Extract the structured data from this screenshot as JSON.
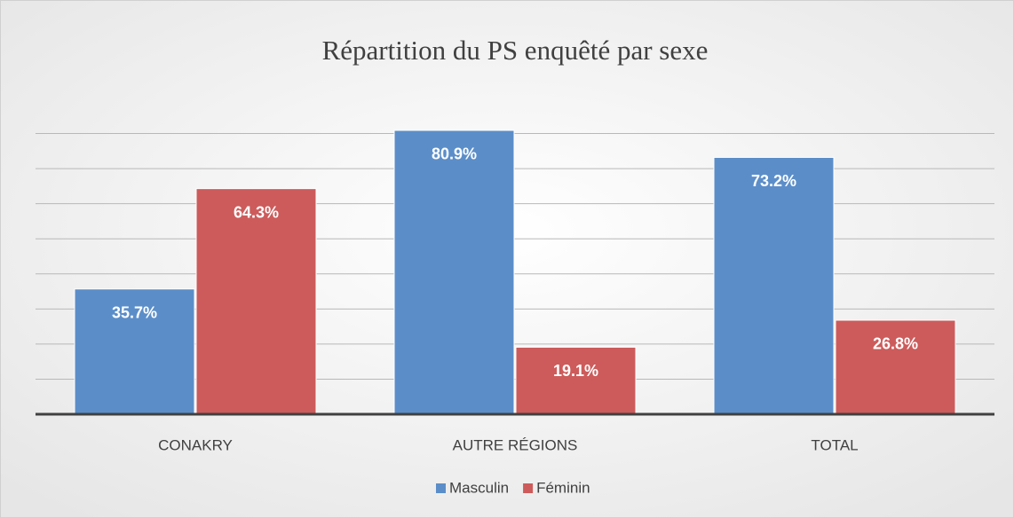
{
  "chart_data": {
    "type": "bar",
    "title": "Répartition du PS enquêté par sexe",
    "categories": [
      "CONAKRY",
      "AUTRE RÉGIONS",
      "TOTAL"
    ],
    "series": [
      {
        "name": "Masculin",
        "color": "#5b8ec9",
        "values": [
          35.7,
          80.9,
          73.2
        ],
        "value_labels": [
          "35.7%",
          "80.9%",
          "73.2%"
        ]
      },
      {
        "name": "Féminin",
        "color": "#cd5b5b",
        "values": [
          64.3,
          19.1,
          26.8
        ],
        "value_labels": [
          "64.3%",
          "19.1%",
          "26.8%"
        ]
      }
    ],
    "ylim": [
      0,
      90
    ],
    "yticks": [
      0,
      10,
      20,
      30,
      40,
      50,
      60,
      70,
      80
    ],
    "grid": true,
    "legend": "bottom"
  }
}
